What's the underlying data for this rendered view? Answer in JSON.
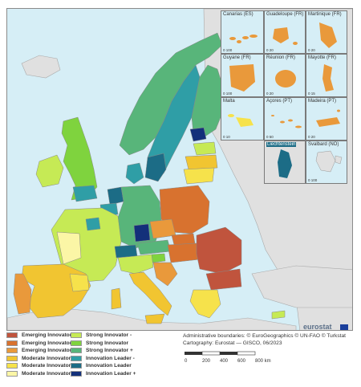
{
  "legend": {
    "items": [
      {
        "label": "Emerging Innovator -",
        "color": "#c0543d"
      },
      {
        "label": "Emerging Innovator",
        "color": "#d8722f"
      },
      {
        "label": "Emerging Innovator +",
        "color": "#e9993b"
      },
      {
        "label": "Moderate Innovator -",
        "color": "#f1c531"
      },
      {
        "label": "Moderate Innovator",
        "color": "#f6e24b"
      },
      {
        "label": "Moderate Innovator +",
        "color": "#fbf6a6"
      },
      {
        "label": "Strong Innovator -",
        "color": "#c6ea55"
      },
      {
        "label": "Strong Innovator",
        "color": "#7fd33e"
      },
      {
        "label": "Strong Innovator +",
        "color": "#58b57a"
      },
      {
        "label": "Innovation Leader -",
        "color": "#2f9ea6"
      },
      {
        "label": "Innovation Leader",
        "color": "#1c6c86"
      },
      {
        "label": "Innovation Leader +",
        "color": "#13307a"
      }
    ]
  },
  "credits": {
    "line1": "Administrative boundaries: © EuroGeographics © UN-FAO © Turkstat",
    "line2": "Cartography: Eurostat — GISCO, 06/2023"
  },
  "scalebar": {
    "ticks": [
      "0",
      "200",
      "400",
      "600",
      "800 km"
    ]
  },
  "logo": {
    "text": "eurostat"
  },
  "insets": [
    {
      "title": "Canarias (ES)",
      "scale": [
        "0",
        "100"
      ]
    },
    {
      "title": "Guadeloupe (FR)",
      "scale": [
        "0",
        "20"
      ]
    },
    {
      "title": "Martinique (FR)",
      "scale": [
        "0",
        "20"
      ]
    },
    {
      "title": "Guyane (FR)",
      "scale": [
        "0",
        "100"
      ]
    },
    {
      "title": "Réunion (FR)",
      "scale": [
        "0",
        "20"
      ]
    },
    {
      "title": "Mayotte (FR)",
      "scale": [
        "0",
        "15"
      ]
    },
    {
      "title": "Malta",
      "scale": [
        "0",
        "10"
      ]
    },
    {
      "title": "Açores (PT)",
      "scale": [
        "0",
        "50"
      ]
    },
    {
      "title": "Madeira (PT)",
      "scale": [
        "0",
        "20"
      ]
    },
    {
      "title": "Liechtenstein",
      "scale": [
        "",
        ""
      ]
    },
    {
      "title": "Svalbard (NO)",
      "scale": [
        "0",
        "100"
      ]
    }
  ],
  "colors": {
    "sea": "#d6eef6",
    "non_eu_land": "#e0e0e0",
    "border": "#9a9a9a"
  }
}
